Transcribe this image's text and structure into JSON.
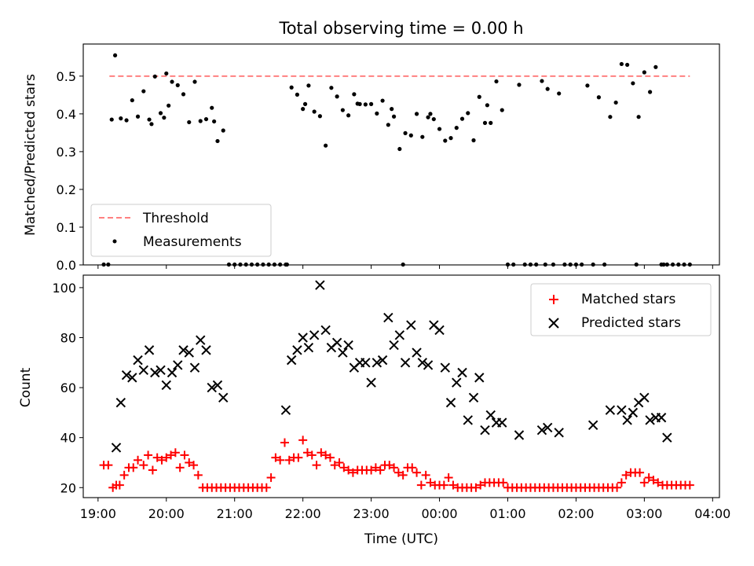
{
  "chart_data": [
    {
      "type": "scatter",
      "title": "Total observing time = 0.00 h",
      "xlabel": "",
      "ylabel": "Matched/Predicted stars",
      "xlim": [
        "19:00",
        "04:00"
      ],
      "ylim": [
        0,
        0.6
      ],
      "yticks": [
        "0.0",
        "0.1",
        "0.2",
        "0.3",
        "0.4",
        "0.5"
      ],
      "xtick_labels_shown": false,
      "legend_position": "lower-left",
      "series": [
        {
          "name": "Threshold",
          "style": "dashed-line",
          "color": "#ff8080",
          "x": [
            "19:10",
            "03:40"
          ],
          "y": [
            0.5,
            0.5
          ]
        },
        {
          "name": "Measurements",
          "style": "dot",
          "color": "#000000",
          "x": [
            "19:05",
            "19:09",
            "19:15",
            "19:20",
            "19:25",
            "19:30",
            "19:35",
            "19:40",
            "19:45",
            "19:50",
            "19:55",
            "20:00",
            "20:05",
            "20:10",
            "20:15",
            "20:20",
            "20:25",
            "20:30",
            "20:35",
            "20:40",
            "20:45",
            "20:50",
            "20:55",
            "21:00",
            "21:05",
            "21:10",
            "21:15",
            "21:20",
            "21:25",
            "21:30",
            "21:35",
            "21:40",
            "21:45",
            "21:50",
            "21:55",
            "22:00",
            "22:05",
            "22:10",
            "22:15",
            "22:20",
            "22:25",
            "22:30",
            "22:35",
            "22:40",
            "22:45",
            "22:50",
            "22:55",
            "23:00",
            "23:05",
            "23:10",
            "23:15",
            "23:20",
            "23:25",
            "23:30",
            "23:35",
            "23:40",
            "23:45",
            "23:50",
            "23:55",
            "00:00",
            "00:05",
            "00:10",
            "00:15",
            "00:20",
            "00:25",
            "00:30",
            "00:35",
            "00:40",
            "00:45",
            "00:50",
            "00:55",
            "01:00",
            "01:05",
            "01:10",
            "01:15",
            "01:20",
            "01:25",
            "01:30",
            "01:35",
            "01:40",
            "01:45",
            "01:50",
            "01:55",
            "02:00",
            "02:05",
            "02:10",
            "02:15",
            "02:20",
            "02:25",
            "02:30",
            "02:35",
            "02:40",
            "02:45",
            "02:50",
            "02:55",
            "03:00",
            "03:05",
            "03:10",
            "03:15",
            "03:20",
            "03:25",
            "03:30",
            "03:35",
            "03:40",
            "19:12",
            "19:47",
            "19:58",
            "20:02",
            "20:42",
            "21:46",
            "22:02",
            "22:48",
            "23:18",
            "23:28",
            "23:52",
            "00:42",
            "01:33",
            "02:53",
            "03:17"
          ],
          "y": [
            0.0,
            0.0,
            0.555,
            0.388,
            0.383,
            0.436,
            0.393,
            0.46,
            0.385,
            0.499,
            0.402,
            0.507,
            0.485,
            0.476,
            0.452,
            0.378,
            0.485,
            0.381,
            0.386,
            0.416,
            0.328,
            0.356,
            0.0,
            0.0,
            0.0,
            0.0,
            0.0,
            0.0,
            0.0,
            0.0,
            0.0,
            0.0,
            0.0,
            0.47,
            0.451,
            0.413,
            0.475,
            0.406,
            0.394,
            0.316,
            0.469,
            0.446,
            0.41,
            0.396,
            0.452,
            0.426,
            0.425,
            0.426,
            0.401,
            0.435,
            0.371,
            0.393,
            0.307,
            0.349,
            0.343,
            0.4,
            0.339,
            0.391,
            0.386,
            0.36,
            0.329,
            0.336,
            0.363,
            0.387,
            0.402,
            0.33,
            0.445,
            0.376,
            0.376,
            0.486,
            0.41,
            0.0,
            0.0,
            0.477,
            0.0,
            0.0,
            0.0,
            0.487,
            0.466,
            0.0,
            0.454,
            0.0,
            0.0,
            0.0,
            0.0,
            0.475,
            0.0,
            0.444,
            0.0,
            0.392,
            0.43,
            0.532,
            0.53,
            0.481,
            0.392,
            0.51,
            0.458,
            0.524,
            0.0,
            0.0,
            0.0,
            0.0,
            0.0,
            0.0,
            0.385,
            0.373,
            0.39,
            0.422,
            0.38,
            0.0,
            0.426,
            0.427,
            0.413,
            0.0,
            0.4,
            0.423,
            0.0,
            0.0,
            0.0
          ]
        }
      ]
    },
    {
      "type": "scatter",
      "title": "",
      "xlabel": "Time (UTC)",
      "ylabel": "Count",
      "xlim": [
        "19:00",
        "04:00"
      ],
      "ylim": [
        16,
        105
      ],
      "yticks": [
        "20",
        "40",
        "60",
        "80",
        "100"
      ],
      "xticks": [
        "19:00",
        "20:00",
        "21:00",
        "22:00",
        "23:00",
        "00:00",
        "01:00",
        "02:00",
        "03:00",
        "04:00"
      ],
      "legend_position": "top-right",
      "series": [
        {
          "name": "Matched stars",
          "style": "plus",
          "color": "#ff0000",
          "x": [
            "19:05",
            "19:09",
            "19:13",
            "19:16",
            "19:19",
            "19:23",
            "19:27",
            "19:31",
            "19:35",
            "19:40",
            "19:44",
            "19:48",
            "19:52",
            "19:56",
            "20:00",
            "20:04",
            "20:08",
            "20:12",
            "20:16",
            "20:20",
            "20:24",
            "20:28",
            "20:32",
            "20:36",
            "20:40",
            "20:44",
            "20:48",
            "20:52",
            "20:56",
            "21:00",
            "21:04",
            "21:08",
            "21:12",
            "21:16",
            "21:20",
            "21:24",
            "21:28",
            "21:32",
            "21:36",
            "21:40",
            "21:44",
            "21:48",
            "21:52",
            "21:56",
            "22:00",
            "22:04",
            "22:08",
            "22:12",
            "22:16",
            "22:20",
            "22:24",
            "22:28",
            "22:32",
            "22:36",
            "22:40",
            "22:44",
            "22:48",
            "22:52",
            "22:56",
            "23:00",
            "23:04",
            "23:08",
            "23:12",
            "23:16",
            "23:20",
            "23:24",
            "23:28",
            "23:32",
            "23:36",
            "23:40",
            "23:44",
            "23:48",
            "23:52",
            "23:56",
            "00:00",
            "00:04",
            "00:08",
            "00:12",
            "00:16",
            "00:20",
            "00:24",
            "00:28",
            "00:32",
            "00:36",
            "00:40",
            "00:44",
            "00:48",
            "00:52",
            "00:56",
            "01:00",
            "01:04",
            "01:08",
            "01:12",
            "01:16",
            "01:20",
            "01:24",
            "01:28",
            "01:32",
            "01:36",
            "01:40",
            "01:44",
            "01:48",
            "01:52",
            "01:56",
            "02:00",
            "02:04",
            "02:08",
            "02:12",
            "02:16",
            "02:20",
            "02:24",
            "02:28",
            "02:32",
            "02:36",
            "02:40",
            "02:44",
            "02:48",
            "02:52",
            "02:56",
            "03:00",
            "03:04",
            "03:08",
            "03:12",
            "03:16",
            "03:20",
            "03:24",
            "03:28",
            "03:32",
            "03:36",
            "03:40"
          ],
          "y": [
            29,
            29,
            20,
            21,
            21,
            25,
            28,
            28,
            31,
            29,
            33,
            27,
            32,
            31,
            32,
            33,
            34,
            28,
            33,
            30,
            29,
            25,
            20,
            20,
            20,
            20,
            20,
            20,
            20,
            20,
            20,
            20,
            20,
            20,
            20,
            20,
            20,
            24,
            32,
            31,
            38,
            31,
            32,
            32,
            39,
            34,
            33,
            29,
            34,
            33,
            32,
            29,
            30,
            28,
            27,
            26,
            27,
            27,
            27,
            27,
            28,
            27,
            29,
            29,
            28,
            26,
            25,
            28,
            28,
            26,
            21,
            25,
            22,
            21,
            21,
            21,
            24,
            21,
            20,
            20,
            20,
            20,
            20,
            21,
            22,
            22,
            22,
            22,
            22,
            20,
            20,
            20,
            20,
            20,
            20,
            20,
            20,
            20,
            20,
            20,
            20,
            20,
            20,
            20,
            20,
            20,
            20,
            20,
            20,
            20,
            20,
            20,
            20,
            20,
            22,
            25,
            26,
            26,
            26,
            22,
            24,
            23,
            22,
            21,
            21,
            21,
            21,
            21,
            21,
            21
          ]
        },
        {
          "name": "Predicted stars",
          "style": "x",
          "color": "#000000",
          "x": [
            "19:16",
            "19:20",
            "19:25",
            "19:30",
            "19:35",
            "19:40",
            "19:45",
            "19:50",
            "19:55",
            "20:00",
            "20:05",
            "20:10",
            "20:15",
            "20:20",
            "20:25",
            "20:30",
            "20:35",
            "20:40",
            "20:45",
            "20:50",
            "21:45",
            "21:50",
            "21:55",
            "22:00",
            "22:05",
            "22:10",
            "22:15",
            "22:20",
            "22:25",
            "22:30",
            "22:35",
            "22:40",
            "22:45",
            "22:50",
            "22:55",
            "23:00",
            "23:05",
            "23:10",
            "23:15",
            "23:20",
            "23:25",
            "23:30",
            "23:35",
            "23:40",
            "23:45",
            "23:50",
            "23:55",
            "00:00",
            "00:05",
            "00:10",
            "00:15",
            "00:20",
            "00:25",
            "00:30",
            "00:35",
            "00:40",
            "00:45",
            "00:50",
            "00:55",
            "01:10",
            "01:30",
            "01:35",
            "01:45",
            "02:15",
            "02:30",
            "02:40",
            "02:45",
            "02:50",
            "02:55",
            "03:00",
            "03:05",
            "03:10",
            "03:15",
            "03:20"
          ],
          "y": [
            36,
            54,
            65,
            64,
            71,
            67,
            75,
            66,
            67,
            61,
            66,
            69,
            75,
            74,
            68,
            79,
            75,
            60,
            61,
            56,
            51,
            71,
            75,
            80,
            76,
            81,
            101,
            83,
            76,
            78,
            74,
            77,
            68,
            70,
            70,
            62,
            70,
            71,
            88,
            77,
            81,
            70,
            85,
            74,
            70,
            69,
            85,
            83,
            68,
            54,
            62,
            66,
            47,
            56,
            64,
            43,
            49,
            46,
            46,
            41,
            43,
            44,
            42,
            45,
            51,
            51,
            47,
            50,
            54,
            56,
            47,
            48,
            48,
            40
          ]
        }
      ]
    }
  ]
}
